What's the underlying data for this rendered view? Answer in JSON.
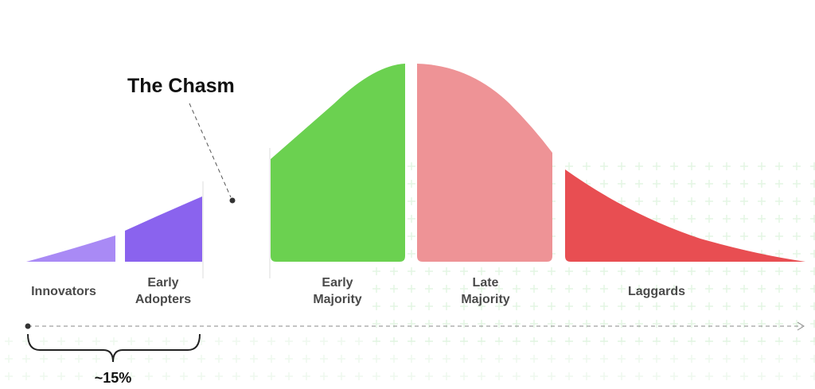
{
  "title": "The Chasm",
  "segments": [
    {
      "label": "Innovators"
    },
    {
      "label": "Early Adopters"
    },
    {
      "label": "Early Majority"
    },
    {
      "label": "Late Majority"
    },
    {
      "label": "Laggards"
    }
  ],
  "bracket_label": "~15%"
}
